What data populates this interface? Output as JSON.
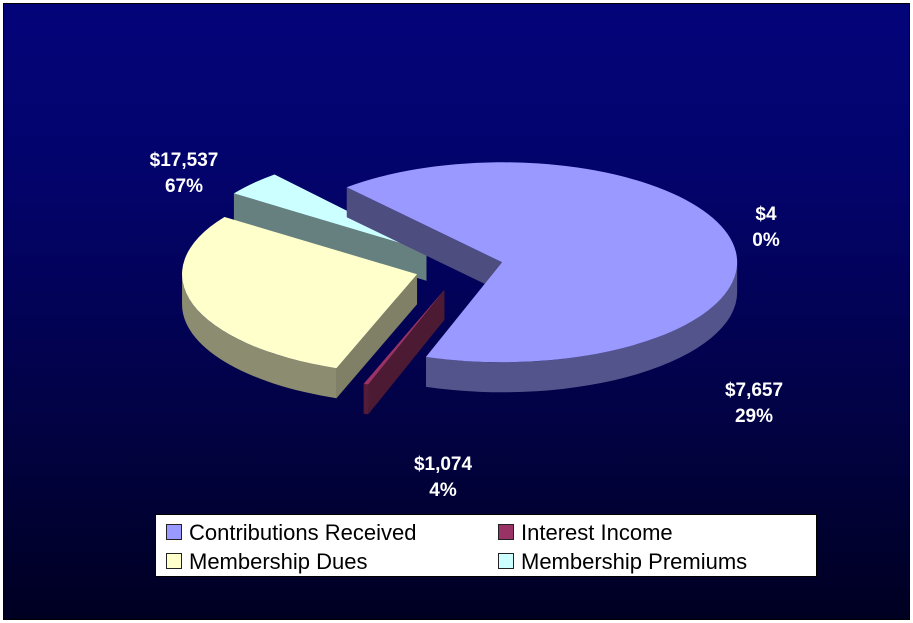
{
  "chart_data": {
    "type": "pie",
    "title": "",
    "categories": [
      "Contributions Received",
      "Interest Income",
      "Membership Dues",
      "Membership Premiums"
    ],
    "values": [
      17537,
      4,
      7657,
      1074
    ],
    "value_labels": [
      "$17,537",
      "$4",
      "$7,657",
      "$1,074"
    ],
    "percent_labels": [
      "67%",
      "0%",
      "29%",
      "4%"
    ],
    "colors": [
      "#9999ff",
      "#993366",
      "#ffffcc",
      "#ccffff"
    ],
    "legend": "bottom",
    "style": "3d-exploded"
  }
}
